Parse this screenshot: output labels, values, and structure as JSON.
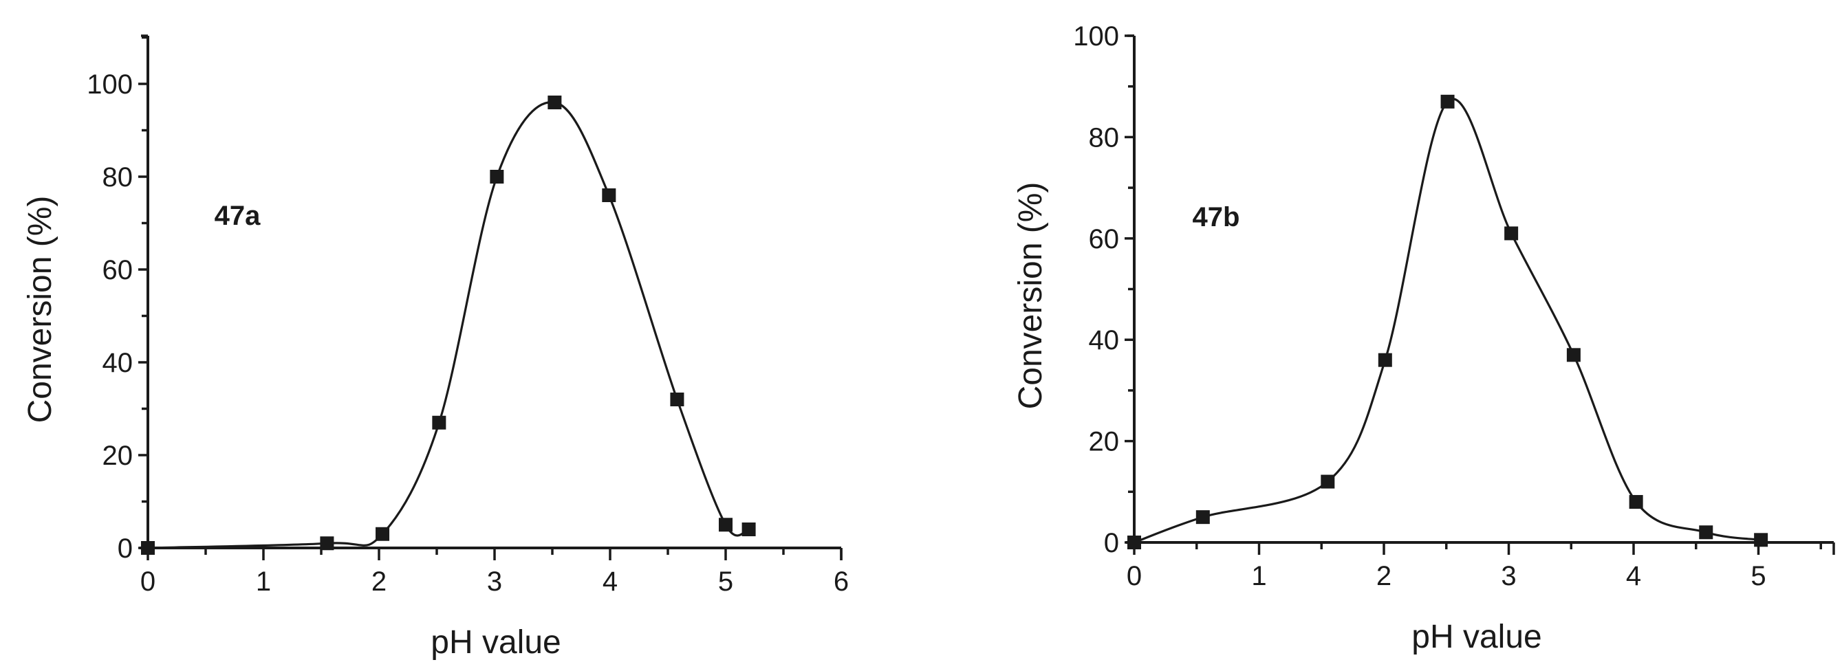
{
  "figure": {
    "panels": [
      {
        "id": "47a",
        "panel_label": "47a",
        "xlabel": "pH value",
        "ylabel": "Conversion (%)"
      },
      {
        "id": "47b",
        "panel_label": "47b",
        "xlabel": "pH value",
        "ylabel": "Conversion (%)"
      }
    ]
  },
  "chart_data": [
    {
      "type": "line",
      "title": "47a",
      "xlabel": "pH value",
      "ylabel": "Conversion (%)",
      "xlim": [
        0,
        6
      ],
      "ylim": [
        0,
        110
      ],
      "x_ticks": [
        0,
        1,
        2,
        3,
        4,
        5,
        6
      ],
      "x_minor_step": 0.5,
      "y_ticks": [
        0,
        20,
        40,
        60,
        80,
        100
      ],
      "y_minor_step": 10,
      "grid": false,
      "legend": null,
      "marker": "square",
      "smooth_curve": true,
      "series": [
        {
          "name": "47a",
          "x": [
            0,
            1.55,
            2.03,
            2.52,
            3.02,
            3.52,
            3.99,
            4.58,
            5.0,
            5.2
          ],
          "y": [
            0,
            1,
            3,
            27,
            80,
            96,
            76,
            32,
            5,
            4
          ]
        }
      ]
    },
    {
      "type": "line",
      "title": "47b",
      "xlabel": "pH value",
      "ylabel": "Conversion (%)",
      "xlim": [
        0,
        5.5
      ],
      "ylim": [
        0,
        100
      ],
      "x_ticks": [
        0,
        1,
        2,
        3,
        4,
        5
      ],
      "x_minor_step": 0.5,
      "y_ticks": [
        0,
        20,
        40,
        60,
        80,
        100
      ],
      "y_minor_step": 10,
      "grid": false,
      "legend": null,
      "marker": "square",
      "smooth_curve": true,
      "series": [
        {
          "name": "47b",
          "x": [
            0,
            0.55,
            1.55,
            2.01,
            2.51,
            3.02,
            3.52,
            4.02,
            4.58,
            5.02
          ],
          "y": [
            0,
            5,
            12,
            36,
            87,
            61,
            37,
            8,
            2,
            0.5
          ]
        }
      ]
    }
  ]
}
